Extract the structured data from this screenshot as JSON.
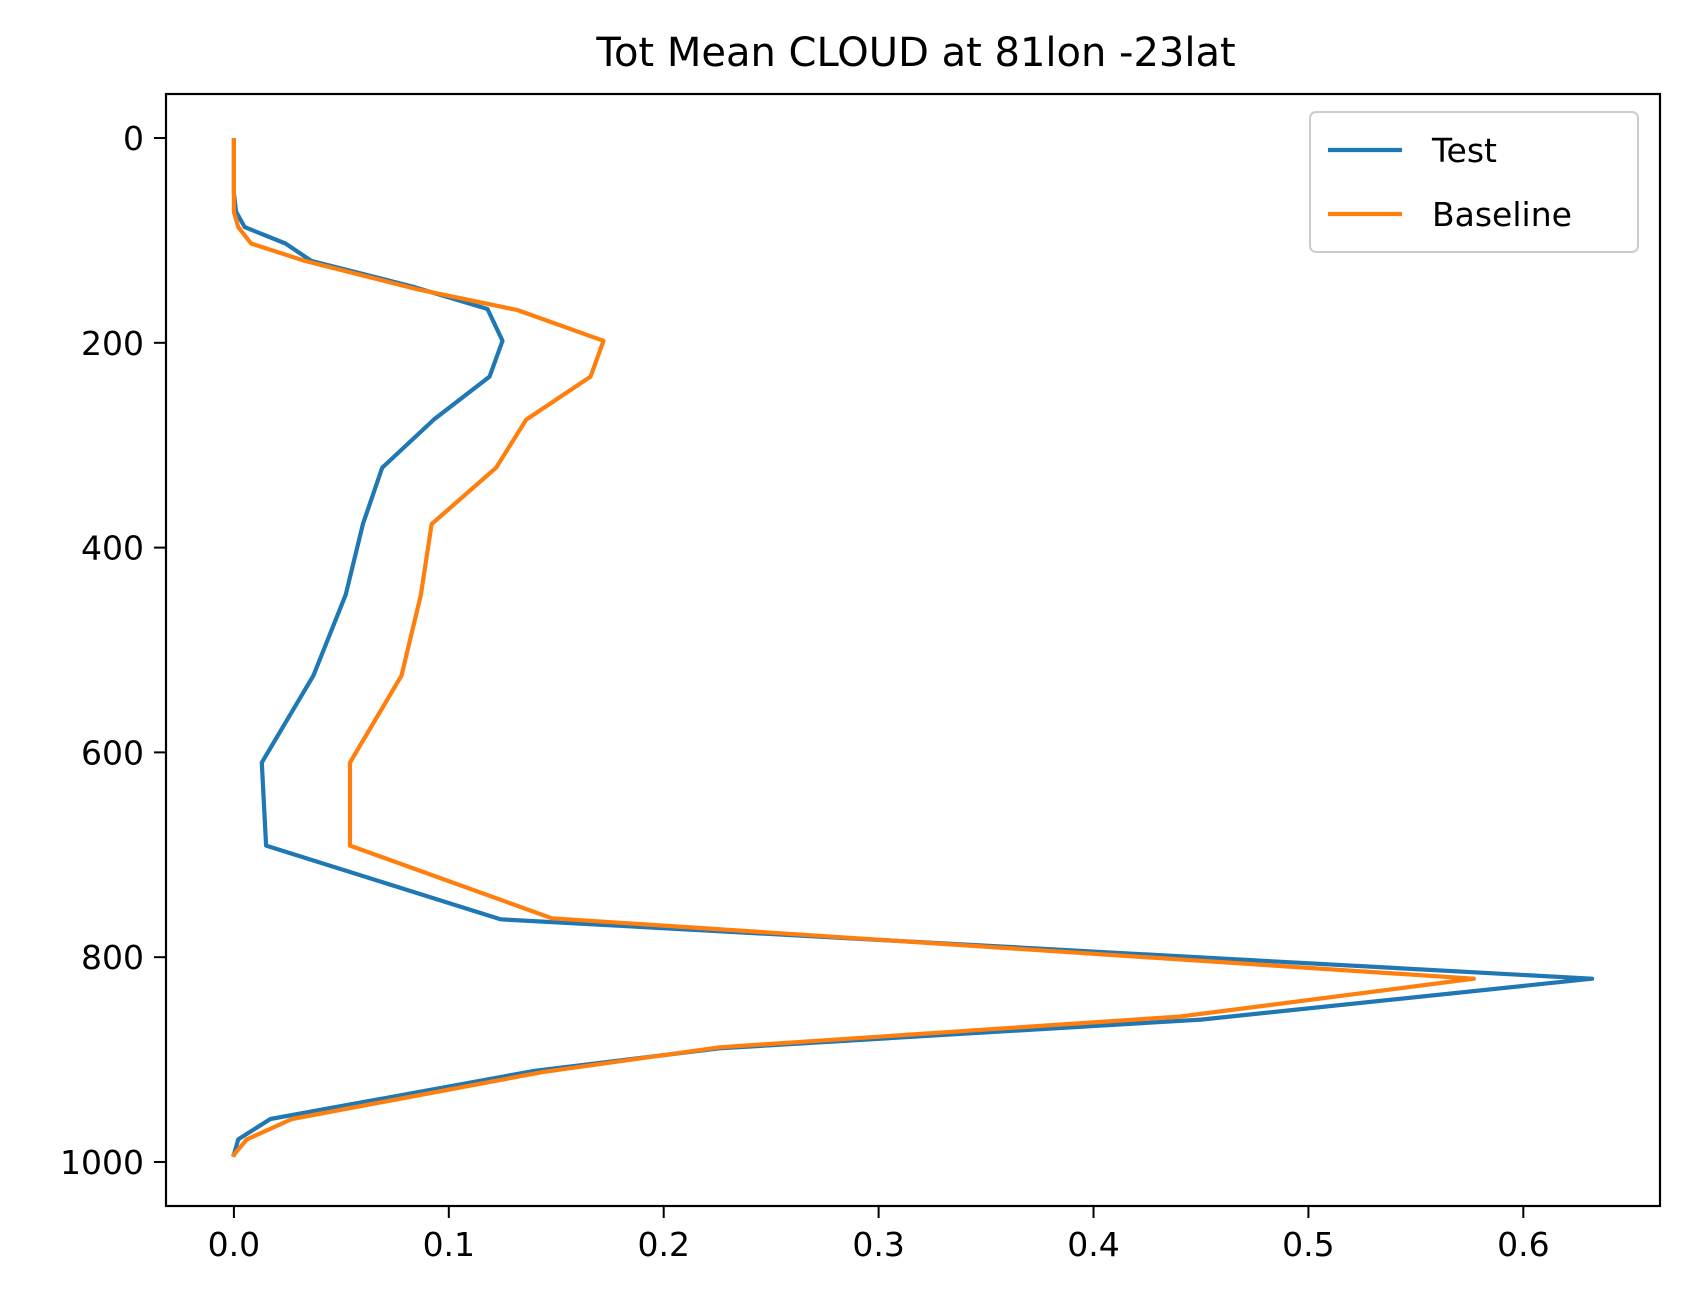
{
  "chart_data": {
    "type": "line",
    "title": "Tot Mean CLOUD at 81lon -23lat",
    "xlabel": "",
    "ylabel": "",
    "xlim": [
      -0.0316,
      0.6636
    ],
    "ylim": [
      1043,
      -43
    ],
    "y_inverted": true,
    "x_ticks": [
      0.0,
      0.1,
      0.2,
      0.3,
      0.4,
      0.5,
      0.6
    ],
    "x_tick_labels": [
      "0.0",
      "0.1",
      "0.2",
      "0.3",
      "0.4",
      "0.5",
      "0.6"
    ],
    "y_ticks": [
      0,
      200,
      400,
      600,
      800,
      1000
    ],
    "y_tick_labels": [
      "0",
      "200",
      "400",
      "600",
      "800",
      "1000"
    ],
    "grid": false,
    "legend_position": "top-right",
    "series": [
      {
        "name": "Test",
        "color": "#1f77b4",
        "x": [
          0.0,
          0.0,
          0.0,
          0.0,
          0.001,
          0.005,
          0.024,
          0.036,
          0.083,
          0.118,
          0.125,
          0.119,
          0.093,
          0.069,
          0.06,
          0.052,
          0.037,
          0.013,
          0.015,
          0.124,
          0.632,
          0.45,
          0.226,
          0.14,
          0.017,
          0.002,
          0.0
        ],
        "y": [
          2,
          20,
          36,
          54,
          72,
          87,
          103,
          120,
          145,
          167,
          198,
          233,
          275,
          322,
          377,
          446,
          525,
          610,
          691,
          763,
          821,
          861,
          889,
          911,
          958,
          978,
          993
        ]
      },
      {
        "name": "Baseline",
        "color": "#ff7f0e",
        "x": [
          0.0,
          0.0,
          0.0,
          0.0,
          0.0,
          0.002,
          0.008,
          0.033,
          0.086,
          0.132,
          0.172,
          0.166,
          0.136,
          0.122,
          0.092,
          0.087,
          0.078,
          0.054,
          0.054,
          0.148,
          0.577,
          0.44,
          0.226,
          0.144,
          0.027,
          0.006,
          0.0
        ],
        "y": [
          2,
          20,
          36,
          54,
          72,
          87,
          103,
          120,
          148,
          168,
          198,
          233,
          275,
          322,
          377,
          446,
          525,
          610,
          691,
          762,
          821,
          858,
          888,
          912,
          958,
          978,
          993
        ]
      }
    ]
  }
}
